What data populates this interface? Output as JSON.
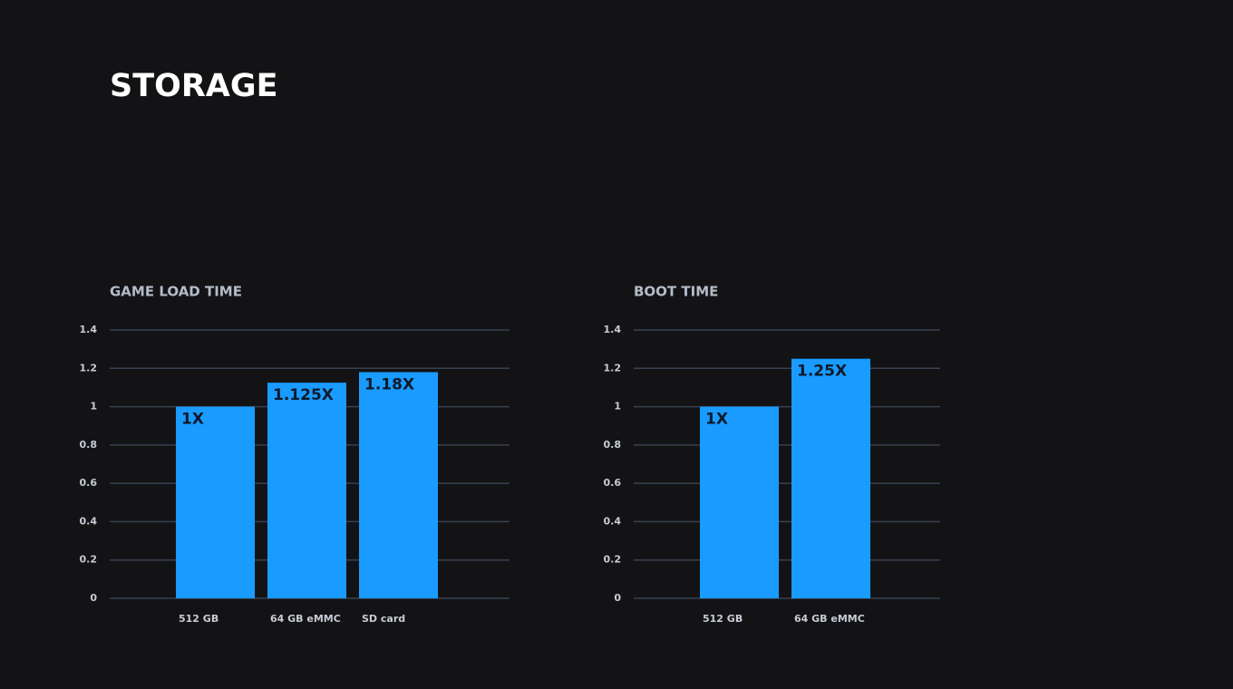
{
  "title": "STORAGE",
  "chart_data": [
    {
      "type": "bar",
      "title": "GAME LOAD TIME",
      "categories": [
        "512 GB",
        "64 GB eMMC",
        "SD card"
      ],
      "values": [
        1,
        1.125,
        1.18
      ],
      "value_labels": [
        "1X",
        "1.125X",
        "1.18X"
      ],
      "color": "#1a9bff",
      "ylim": [
        0,
        1.4
      ],
      "yticks": [
        0,
        0.2,
        0.4,
        0.6,
        0.8,
        1,
        1.2,
        1.4
      ],
      "grid": true
    },
    {
      "type": "bar",
      "title": "BOOT TIME",
      "categories": [
        "512 GB",
        "64 GB eMMC"
      ],
      "values": [
        1,
        1.25
      ],
      "value_labels": [
        "1X",
        "1.25X"
      ],
      "color": "#1a9bff",
      "ylim": [
        0,
        1.4
      ],
      "yticks": [
        0,
        0.2,
        0.4,
        0.6,
        0.8,
        1,
        1.2,
        1.4
      ],
      "grid": true
    }
  ]
}
